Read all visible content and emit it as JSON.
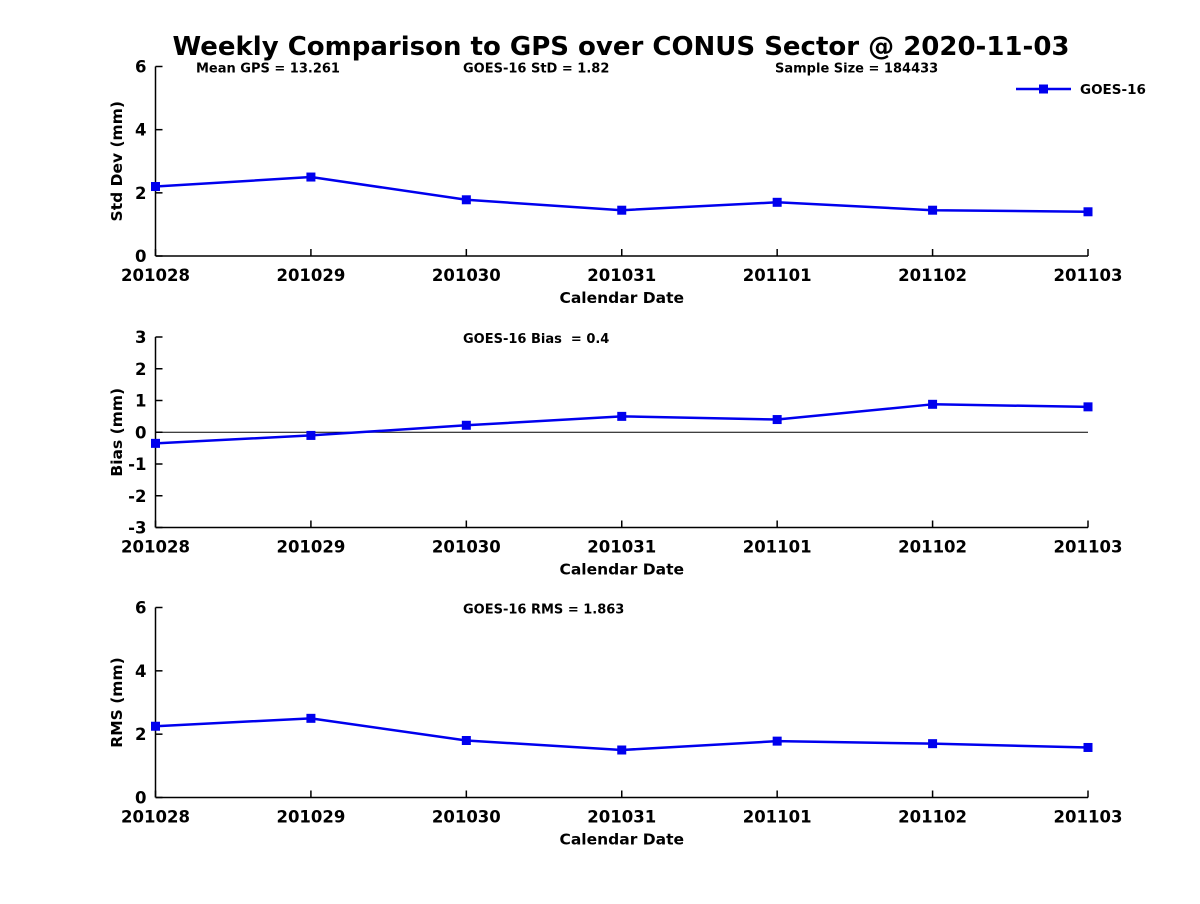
{
  "page": {
    "title": "Weekly Comparison to GPS over CONUS Sector @ 2020-11-03",
    "background": "#ffffff"
  },
  "legend": {
    "label": "GOES-16",
    "color": "#0000ee",
    "position": "top-right-outside"
  },
  "colors": {
    "series": "#0000ee",
    "axis": "#000000",
    "zero_line": "#000000",
    "text": "#000000"
  },
  "chart_data": [
    {
      "type": "line",
      "categories": [
        "201028",
        "201029",
        "201030",
        "201031",
        "201101",
        "201102",
        "201103"
      ],
      "series": [
        {
          "name": "GOES-16",
          "values": [
            2.2,
            2.5,
            1.78,
            1.45,
            1.7,
            1.45,
            1.4
          ]
        }
      ],
      "xlabel": "Calendar Date",
      "ylabel": "Std Dev (mm)",
      "ylim": [
        0,
        6
      ],
      "yticks": [
        0,
        2,
        4,
        6
      ],
      "annotations": [
        "Mean GPS = 13.261",
        "GOES-16 StD = 1.82",
        "Sample Size = 184433"
      ],
      "marker": "square",
      "grid": false,
      "zero_line": false,
      "show_legend": true
    },
    {
      "type": "line",
      "categories": [
        "201028",
        "201029",
        "201030",
        "201031",
        "201101",
        "201102",
        "201103"
      ],
      "series": [
        {
          "name": "GOES-16",
          "values": [
            -0.35,
            -0.1,
            0.22,
            0.5,
            0.4,
            0.88,
            0.8
          ]
        }
      ],
      "xlabel": "Calendar Date",
      "ylabel": "Bias (mm)",
      "ylim": [
        -3,
        3
      ],
      "yticks": [
        -3,
        -2,
        -1,
        0,
        1,
        2,
        3
      ],
      "annotations": [
        "GOES-16 Bias  = 0.4"
      ],
      "marker": "square",
      "grid": false,
      "zero_line": true,
      "show_legend": false
    },
    {
      "type": "line",
      "categories": [
        "201028",
        "201029",
        "201030",
        "201031",
        "201101",
        "201102",
        "201103"
      ],
      "series": [
        {
          "name": "GOES-16",
          "values": [
            2.25,
            2.5,
            1.8,
            1.5,
            1.78,
            1.7,
            1.58
          ]
        }
      ],
      "xlabel": "Calendar Date",
      "ylabel": "RMS (mm)",
      "ylim": [
        0,
        6
      ],
      "yticks": [
        0,
        2,
        4,
        6
      ],
      "annotations": [
        "GOES-16 RMS = 1.863"
      ],
      "marker": "square",
      "grid": false,
      "zero_line": false,
      "show_legend": false
    }
  ]
}
